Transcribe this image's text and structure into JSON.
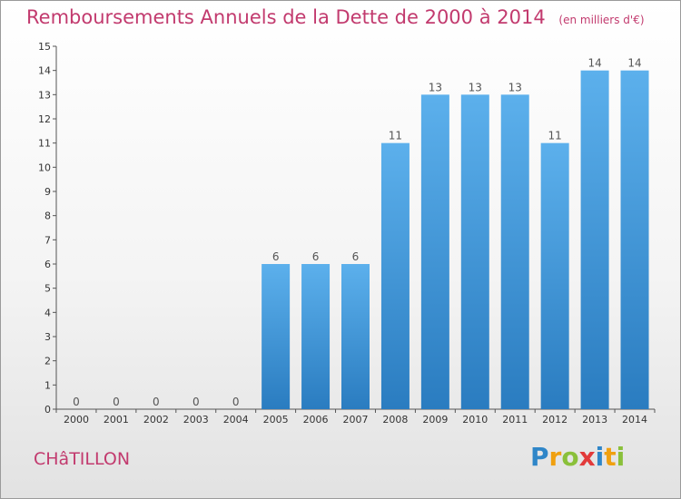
{
  "header": {
    "title": "Remboursements Annuels de la Dette de 2000 à 2014",
    "unit": "(en milliers d'€)"
  },
  "footer": {
    "city": "CHâTILLON",
    "brand_letters": [
      "P",
      "r",
      "o",
      "x",
      "i",
      "t",
      "i"
    ]
  },
  "chart_data": {
    "type": "bar",
    "title": "Remboursements Annuels de la Dette de 2000 à 2014",
    "subtitle": "(en milliers d'€)",
    "xlabel": "",
    "ylabel": "",
    "categories": [
      "2000",
      "2001",
      "2002",
      "2003",
      "2004",
      "2005",
      "2006",
      "2007",
      "2008",
      "2009",
      "2010",
      "2011",
      "2012",
      "2013",
      "2014"
    ],
    "values": [
      0,
      0,
      0,
      0,
      0,
      6,
      6,
      6,
      11,
      13,
      13,
      13,
      11,
      14,
      14
    ],
    "ylim": [
      0,
      15
    ],
    "yticks": [
      0,
      1,
      2,
      3,
      4,
      5,
      6,
      7,
      8,
      9,
      10,
      11,
      12,
      13,
      14,
      15
    ],
    "grid": false,
    "bar_color": "#3d93d6"
  }
}
